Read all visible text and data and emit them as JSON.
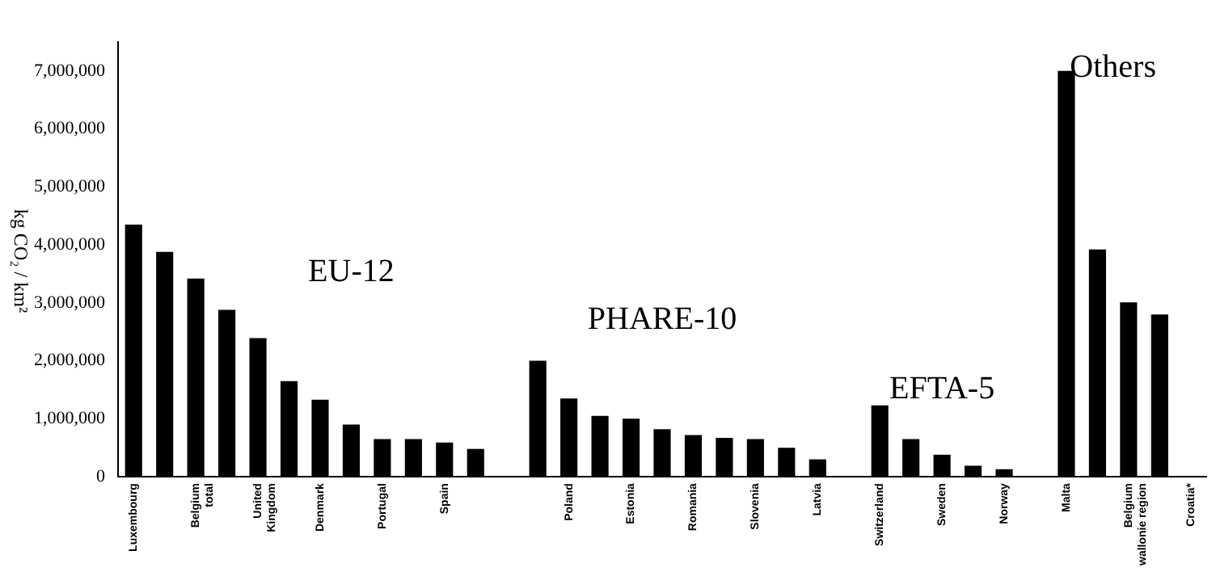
{
  "chart_data": {
    "type": "bar",
    "ylabel": "kg CO₂ / km²",
    "categories": [
      "Luxembourg",
      null,
      "Belgium total",
      null,
      "United Kingdom",
      null,
      "Denmark",
      null,
      "Portugal",
      null,
      "Spain",
      null,
      null,
      null,
      "Poland",
      null,
      "Estonia",
      null,
      "Romania",
      null,
      "Slovenia",
      null,
      "Latvia",
      null,
      "Switzerland",
      null,
      "Sweden",
      null,
      "Norway",
      null,
      "Malta",
      null,
      "Belgium wallonie region",
      null,
      "Croatia*"
    ],
    "values": [
      4350000,
      3880000,
      3420000,
      2880000,
      2390000,
      1650000,
      1330000,
      900000,
      650000,
      650000,
      590000,
      480000,
      null,
      2000000,
      1350000,
      1050000,
      1000000,
      820000,
      720000,
      670000,
      650000,
      500000,
      300000,
      null,
      1230000,
      650000,
      380000,
      190000,
      130000,
      null,
      7000000,
      3920000,
      3010000,
      2800000,
      null
    ],
    "color": "#000000",
    "ylim": [
      0,
      7500000
    ],
    "yticks": [
      0,
      {
        "value": 1000000,
        "label": "1,000,000"
      },
      {
        "value": 2000000,
        "label": "2,000,000"
      },
      {
        "value": 3000000,
        "label": "3,000,000"
      },
      {
        "value": 4000000,
        "label": "4,000,000"
      },
      {
        "value": 5000000,
        "label": "5,000,000"
      },
      {
        "value": 6000000,
        "label": "6,000,000"
      },
      {
        "value": 7000000,
        "label": "7,000,000"
      }
    ],
    "grid": false,
    "legend": false,
    "annotations": [
      "EU-12",
      "PHARE-10",
      "EFTA-5",
      "Others"
    ]
  }
}
